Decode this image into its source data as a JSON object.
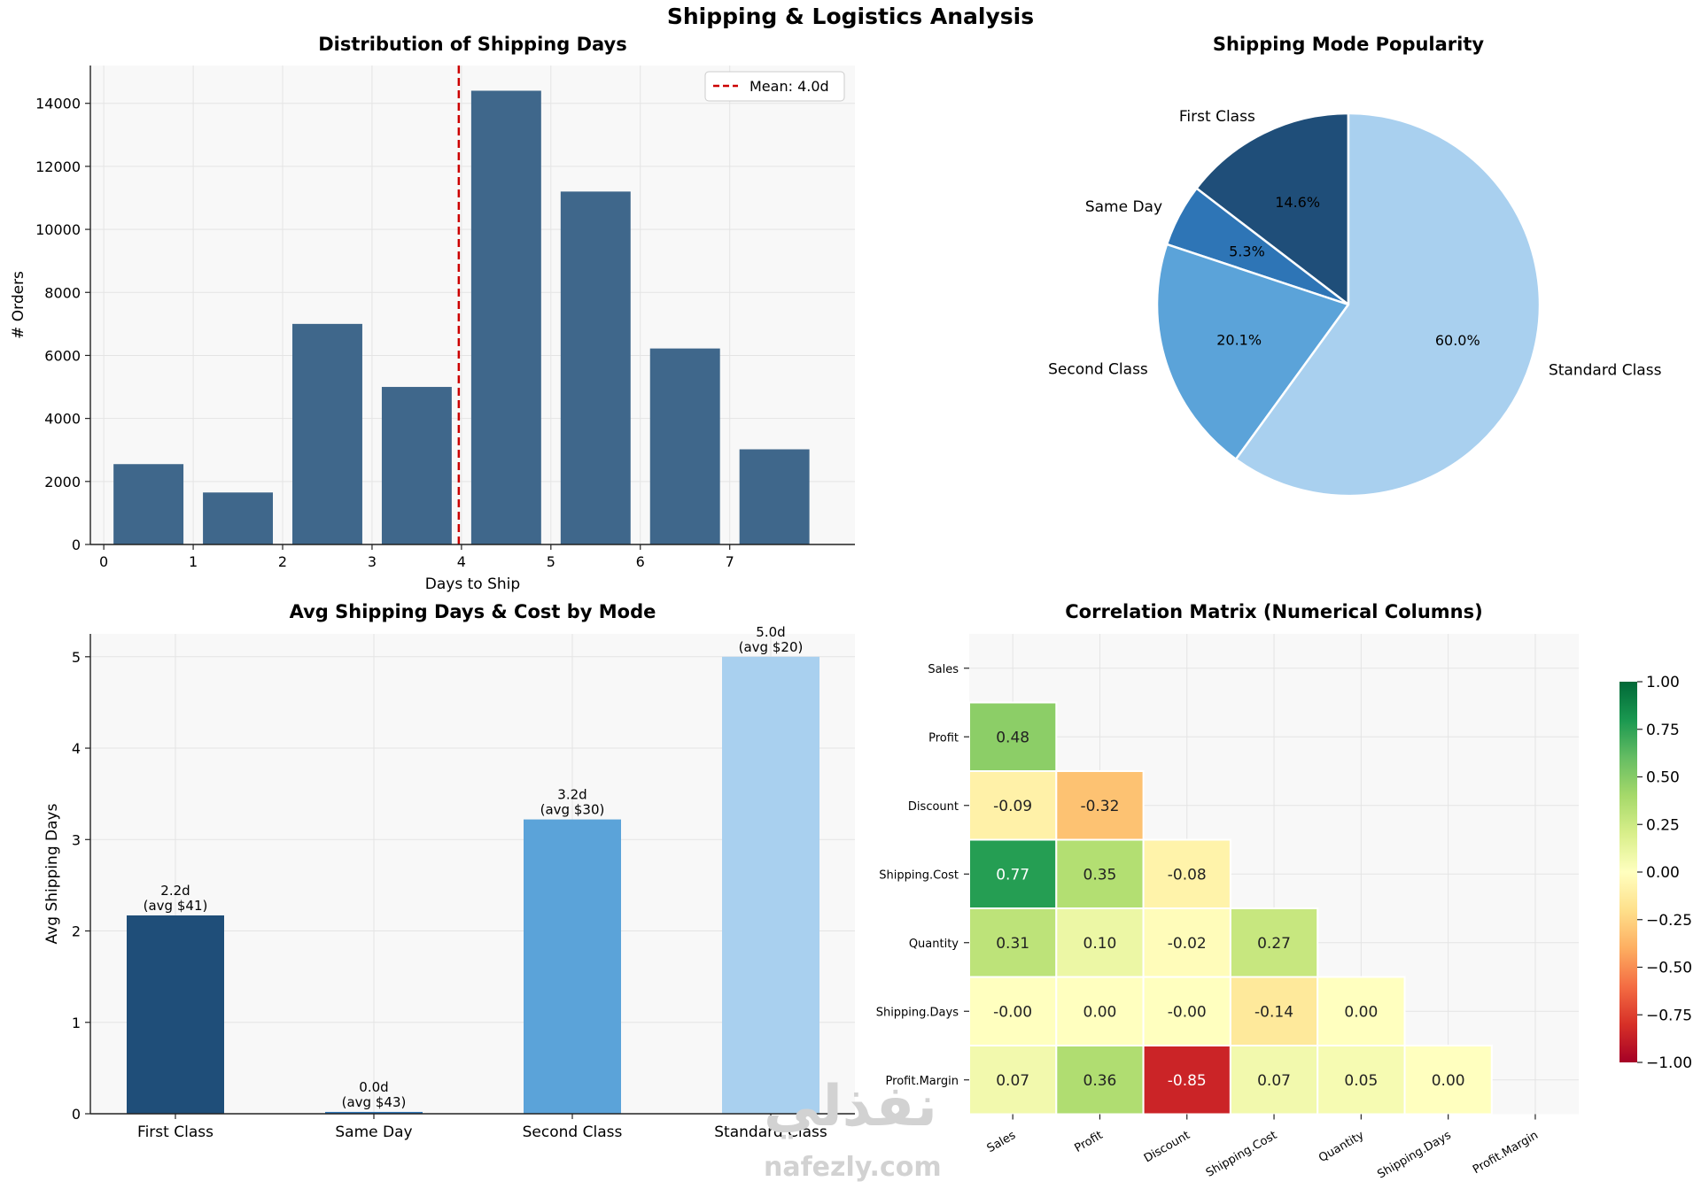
{
  "suptitle": "Shipping & Logistics Analysis",
  "watermark": {
    "arabic": "نفذلي",
    "latin": "nafezly.com"
  },
  "colors": {
    "hist_bar": "#3f678b",
    "mean_line": "#cc0000",
    "mode_colors": [
      "#1f4e79",
      "#2e75b6",
      "#5ba3d9",
      "#a9d0ef"
    ],
    "plot_bg": "#f8f8f8",
    "grid": "#e4e4e4"
  },
  "chart_data": [
    {
      "type": "bar",
      "title": "Distribution of Shipping Days",
      "xlabel": "Days to Ship",
      "ylabel": "# Orders",
      "bins": [
        [
          0,
          1
        ],
        [
          1,
          2
        ],
        [
          2,
          3
        ],
        [
          3,
          4
        ],
        [
          4,
          5
        ],
        [
          5,
          6
        ],
        [
          6,
          7
        ],
        [
          7,
          8
        ]
      ],
      "values": [
        2550,
        1650,
        7000,
        5000,
        14400,
        11200,
        6220,
        3020
      ],
      "xlim": [
        -0.15,
        8.4
      ],
      "ylim": [
        0,
        15200
      ],
      "xticks": [
        0,
        1,
        2,
        3,
        4,
        5,
        6,
        7
      ],
      "yticks": [
        0,
        2000,
        4000,
        6000,
        8000,
        10000,
        12000,
        14000
      ],
      "mean": 3.97,
      "legend": {
        "label": "Mean: 4.0d",
        "placement": "upper right"
      },
      "grid": true
    },
    {
      "type": "pie",
      "title": "Shipping Mode Popularity",
      "labels": [
        "First Class",
        "Same Day",
        "Second Class",
        "Standard Class"
      ],
      "values": [
        14.6,
        5.3,
        20.1,
        60.0
      ],
      "pct_labels": [
        "14.6%",
        "5.3%",
        "20.1%",
        "60.0%"
      ],
      "start_angle": 90,
      "direction": "counterclockwise"
    },
    {
      "type": "bar",
      "title": "Avg Shipping Days & Cost by Mode",
      "xlabel": "",
      "ylabel": "Avg Shipping Days",
      "categories": [
        "First Class",
        "Same Day",
        "Second Class",
        "Standard Class"
      ],
      "values": [
        2.17,
        0.02,
        3.22,
        5.0
      ],
      "data_labels": [
        [
          "2.2d",
          "(avg $41)"
        ],
        [
          "0.0d",
          "(avg $43)"
        ],
        [
          "3.2d",
          "(avg $30)"
        ],
        [
          "5.0d",
          "(avg $20)"
        ]
      ],
      "ylim": [
        0,
        5.25
      ],
      "yticks": [
        0,
        1,
        2,
        3,
        4,
        5
      ],
      "grid": true
    },
    {
      "type": "heatmap",
      "title": "Correlation Matrix (Numerical Columns)",
      "labels": [
        "Sales",
        "Profit",
        "Discount",
        "Shipping.Cost",
        "Quantity",
        "Shipping.Days",
        "Profit.Margin"
      ],
      "lower_triangle": [
        [],
        [
          0.48
        ],
        [
          -0.09,
          -0.32
        ],
        [
          0.77,
          0.35,
          -0.08
        ],
        [
          0.31,
          0.1,
          -0.02,
          0.27
        ],
        [
          -0.0,
          0.0,
          -0.0,
          -0.14,
          0.0
        ],
        [
          0.07,
          0.36,
          -0.85,
          0.07,
          0.05,
          0.0
        ]
      ],
      "cell_text": [
        [],
        [
          "0.48"
        ],
        [
          "-0.09",
          "-0.32"
        ],
        [
          "0.77",
          "0.35",
          "-0.08"
        ],
        [
          "0.31",
          "0.10",
          "-0.02",
          "0.27"
        ],
        [
          "-0.00",
          "0.00",
          "-0.00",
          "-0.14",
          "0.00"
        ],
        [
          "0.07",
          "0.36",
          "-0.85",
          "0.07",
          "0.05",
          "0.00"
        ]
      ],
      "colormap": "RdYlGn",
      "vmin": -1.0,
      "vmax": 1.0,
      "colorbar_ticks": [
        "1.00",
        "0.75",
        "0.50",
        "0.25",
        "0.00",
        "−0.25",
        "−0.50",
        "−0.75",
        "−1.00"
      ],
      "colorbar_tick_values": [
        1.0,
        0.75,
        0.5,
        0.25,
        0.0,
        -0.25,
        -0.5,
        -0.75,
        -1.0
      ]
    }
  ]
}
